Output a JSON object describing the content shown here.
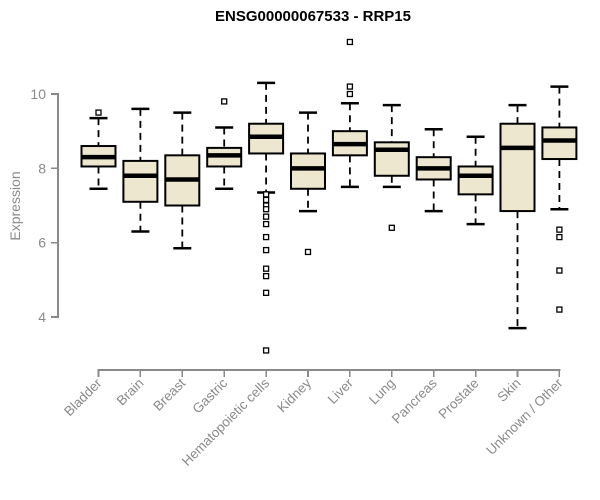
{
  "title": "ENSG00000067533 - RRP15",
  "chart_data": {
    "type": "boxplot",
    "title": "ENSG00000067533 - RRP15",
    "ylabel": "Expression",
    "xlabel": "",
    "yticks": [
      4,
      6,
      8,
      10
    ],
    "ylim": [
      3.0,
      11.5
    ],
    "grid": false,
    "legend": "none",
    "categories": [
      "Bladder",
      "Brain",
      "Breast",
      "Gastric",
      "Hematopoietic cells",
      "Kidney",
      "Liver",
      "Lung",
      "Pancreas",
      "Prostate",
      "Skin",
      "Unknown / Other"
    ],
    "boxes": [
      {
        "category": "Bladder",
        "whisker_low": 7.45,
        "q1": 8.05,
        "median": 8.3,
        "q3": 8.6,
        "whisker_high": 9.35,
        "outliers": [
          9.5
        ]
      },
      {
        "category": "Brain",
        "whisker_low": 6.3,
        "q1": 7.1,
        "median": 7.8,
        "q3": 8.2,
        "whisker_high": 9.6,
        "outliers": []
      },
      {
        "category": "Breast",
        "whisker_low": 5.85,
        "q1": 7.0,
        "median": 7.7,
        "q3": 8.35,
        "whisker_high": 9.5,
        "outliers": []
      },
      {
        "category": "Gastric",
        "whisker_low": 7.45,
        "q1": 8.05,
        "median": 8.35,
        "q3": 8.55,
        "whisker_high": 9.1,
        "outliers": [
          9.8
        ]
      },
      {
        "category": "Hematopoietic cells",
        "whisker_low": 7.35,
        "q1": 8.4,
        "median": 8.85,
        "q3": 9.2,
        "whisker_high": 10.3,
        "outliers": [
          7.3,
          7.15,
          7.0,
          6.9,
          6.7,
          6.5,
          6.15,
          5.8,
          5.3,
          5.1,
          4.65,
          3.1
        ]
      },
      {
        "category": "Kidney",
        "whisker_low": 6.85,
        "q1": 7.45,
        "median": 8.0,
        "q3": 8.4,
        "whisker_high": 9.5,
        "outliers": [
          5.75
        ]
      },
      {
        "category": "Liver",
        "whisker_low": 7.5,
        "q1": 8.35,
        "median": 8.65,
        "q3": 9.0,
        "whisker_high": 9.75,
        "outliers": [
          11.4,
          10.2,
          10.0
        ]
      },
      {
        "category": "Lung",
        "whisker_low": 7.5,
        "q1": 7.8,
        "median": 8.5,
        "q3": 8.7,
        "whisker_high": 9.7,
        "outliers": [
          6.4
        ]
      },
      {
        "category": "Pancreas",
        "whisker_low": 6.85,
        "q1": 7.7,
        "median": 8.0,
        "q3": 8.3,
        "whisker_high": 9.05,
        "outliers": []
      },
      {
        "category": "Prostate",
        "whisker_low": 6.5,
        "q1": 7.3,
        "median": 7.8,
        "q3": 8.05,
        "whisker_high": 8.85,
        "outliers": []
      },
      {
        "category": "Skin",
        "whisker_low": 3.7,
        "q1": 6.85,
        "median": 8.55,
        "q3": 9.2,
        "whisker_high": 9.7,
        "outliers": []
      },
      {
        "category": "Unknown / Other",
        "whisker_low": 6.9,
        "q1": 8.25,
        "median": 8.75,
        "q3": 9.1,
        "whisker_high": 10.2,
        "outliers": [
          6.35,
          6.15,
          5.25,
          4.2
        ]
      }
    ],
    "colors": {
      "box_fill": "#EDE7CF",
      "box_stroke": "#000000",
      "median": "#000000",
      "outlier_stroke": "#000000",
      "axis": "#8A8A8A",
      "tick_label": "#8A8A8A",
      "title": "#000000",
      "background": "#FFFFFF"
    }
  }
}
